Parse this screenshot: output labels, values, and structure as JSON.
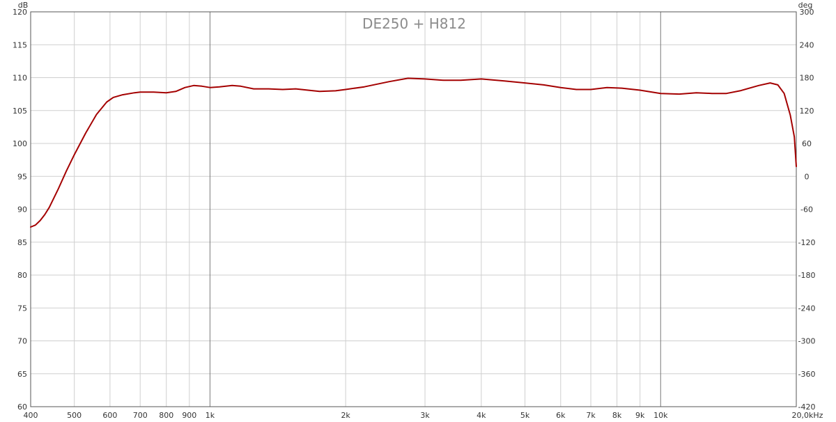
{
  "chart_data": {
    "type": "line",
    "title": "DE250 + H812",
    "y_unit": "dB",
    "y2_unit": "deg",
    "x_scale": "log",
    "xlim": [
      400,
      20000
    ],
    "ylim": [
      60,
      120
    ],
    "y2lim": [
      -420,
      300
    ],
    "grid": true,
    "y_ticks": [
      {
        "value": 120,
        "label": "120"
      },
      {
        "value": 115,
        "label": "115"
      },
      {
        "value": 110,
        "label": "110"
      },
      {
        "value": 105,
        "label": "105"
      },
      {
        "value": 100,
        "label": "100"
      },
      {
        "value": 95,
        "label": "95"
      },
      {
        "value": 90,
        "label": "90"
      },
      {
        "value": 85,
        "label": "85"
      },
      {
        "value": 80,
        "label": "80"
      },
      {
        "value": 75,
        "label": "75"
      },
      {
        "value": 70,
        "label": "70"
      },
      {
        "value": 65,
        "label": "65"
      },
      {
        "value": 60,
        "label": "60"
      }
    ],
    "y2_ticks": [
      {
        "value": 300,
        "label": "300"
      },
      {
        "value": 240,
        "label": "240"
      },
      {
        "value": 180,
        "label": "180"
      },
      {
        "value": 120,
        "label": "120"
      },
      {
        "value": 60,
        "label": "60"
      },
      {
        "value": 0,
        "label": "0"
      },
      {
        "value": -60,
        "label": "-60"
      },
      {
        "value": -120,
        "label": "-120"
      },
      {
        "value": -180,
        "label": "-180"
      },
      {
        "value": -240,
        "label": "-240"
      },
      {
        "value": -300,
        "label": "-300"
      },
      {
        "value": -360,
        "label": "-360"
      },
      {
        "value": -420,
        "label": "-420"
      }
    ],
    "x_ticks": [
      {
        "value": 400,
        "label": "400"
      },
      {
        "value": 500,
        "label": "500"
      },
      {
        "value": 600,
        "label": "600"
      },
      {
        "value": 700,
        "label": "700"
      },
      {
        "value": 800,
        "label": "800"
      },
      {
        "value": 900,
        "label": "900"
      },
      {
        "value": 1000,
        "label": "1k"
      },
      {
        "value": 2000,
        "label": "2k"
      },
      {
        "value": 3000,
        "label": "3k"
      },
      {
        "value": 4000,
        "label": "4k"
      },
      {
        "value": 5000,
        "label": "5k"
      },
      {
        "value": 6000,
        "label": "6k"
      },
      {
        "value": 7000,
        "label": "7k"
      },
      {
        "value": 8000,
        "label": "8k"
      },
      {
        "value": 9000,
        "label": "9k"
      },
      {
        "value": 10000,
        "label": "10k"
      },
      {
        "value": 20000,
        "label": "20,0kHz"
      }
    ],
    "major_x_lines": [
      1000,
      10000
    ],
    "series": [
      {
        "color": "#a40000",
        "points": [
          [
            400,
            87.3
          ],
          [
            410,
            87.6
          ],
          [
            420,
            88.3
          ],
          [
            430,
            89.2
          ],
          [
            440,
            90.3
          ],
          [
            460,
            93.0
          ],
          [
            480,
            95.8
          ],
          [
            500,
            98.3
          ],
          [
            530,
            101.6
          ],
          [
            560,
            104.4
          ],
          [
            590,
            106.3
          ],
          [
            610,
            107.0
          ],
          [
            640,
            107.4
          ],
          [
            680,
            107.7
          ],
          [
            700,
            107.8
          ],
          [
            750,
            107.8
          ],
          [
            800,
            107.7
          ],
          [
            840,
            107.9
          ],
          [
            880,
            108.5
          ],
          [
            920,
            108.8
          ],
          [
            960,
            108.7
          ],
          [
            1000,
            108.5
          ],
          [
            1050,
            108.6
          ],
          [
            1120,
            108.8
          ],
          [
            1170,
            108.7
          ],
          [
            1250,
            108.3
          ],
          [
            1350,
            108.3
          ],
          [
            1450,
            108.2
          ],
          [
            1550,
            108.3
          ],
          [
            1650,
            108.1
          ],
          [
            1750,
            107.9
          ],
          [
            1900,
            108.0
          ],
          [
            2000,
            108.2
          ],
          [
            2200,
            108.6
          ],
          [
            2500,
            109.4
          ],
          [
            2750,
            109.9
          ],
          [
            3000,
            109.8
          ],
          [
            3300,
            109.6
          ],
          [
            3600,
            109.6
          ],
          [
            4000,
            109.8
          ],
          [
            4500,
            109.5
          ],
          [
            5000,
            109.2
          ],
          [
            5500,
            108.9
          ],
          [
            6000,
            108.5
          ],
          [
            6500,
            108.2
          ],
          [
            7000,
            108.2
          ],
          [
            7600,
            108.5
          ],
          [
            8200,
            108.4
          ],
          [
            9000,
            108.1
          ],
          [
            10000,
            107.6
          ],
          [
            11000,
            107.5
          ],
          [
            12000,
            107.7
          ],
          [
            13000,
            107.6
          ],
          [
            14000,
            107.6
          ],
          [
            15000,
            108.0
          ],
          [
            16500,
            108.8
          ],
          [
            17500,
            109.2
          ],
          [
            18200,
            108.9
          ],
          [
            18800,
            107.6
          ],
          [
            19400,
            104.3
          ],
          [
            19800,
            101.0
          ],
          [
            20000,
            96.5
          ]
        ]
      }
    ]
  }
}
